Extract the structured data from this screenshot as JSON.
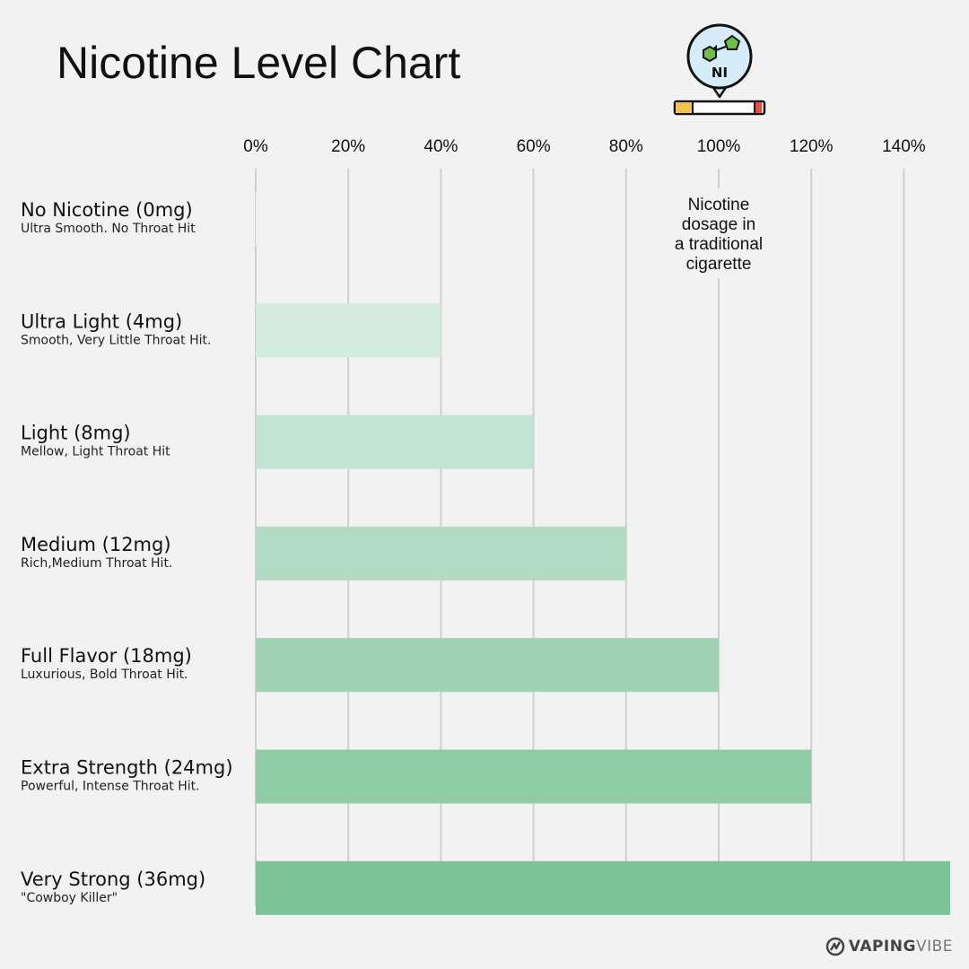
{
  "colors": {
    "background": "#f2f2f2",
    "grid": "#cfcfcf",
    "bars": [
      "#e6f5ec",
      "#d4ece0",
      "#c4e4d3",
      "#b1dcc3",
      "#9fd3b3",
      "#8ecca5",
      "#7bc497"
    ]
  },
  "chart_data": {
    "type": "bar",
    "orientation": "horizontal",
    "title": "Nicotine Level Chart",
    "xlim": [
      0,
      150
    ],
    "x_ticks": [
      0,
      20,
      40,
      60,
      80,
      100,
      120,
      140
    ],
    "x_tick_labels": [
      "0%",
      "20%",
      "40%",
      "60%",
      "80%",
      "100%",
      "120%",
      "140%"
    ],
    "grid": true,
    "categories": [
      "No Nicotine (0mg)",
      "Ultra Light (4mg)",
      "Light (8mg)",
      "Medium (12mg)",
      "Full Flavor (18mg)",
      "Extra Strength (24mg)",
      "Very Strong (36mg)"
    ],
    "descriptions": [
      "Ultra Smooth. No Throat Hit",
      "Smooth, Very Little Throat Hit.",
      "Mellow, Light Throat Hit",
      "Rich,Medium Throat Hit.",
      "Luxurious, Bold Throat Hit.",
      "Powerful, Intense Throat Hit.",
      "\"Cowboy Killer\""
    ],
    "values": [
      0,
      40,
      60,
      80,
      100,
      120,
      150
    ],
    "annotations": [
      {
        "x": 100,
        "lines": [
          "Nicotine",
          "dosage in",
          "a traditional",
          "cigarette"
        ]
      }
    ]
  },
  "icon": {
    "name": "nicotine-molecule-cigarette-icon",
    "label": "NI"
  },
  "brand": {
    "bold": "VAPING",
    "light": "VIBE"
  }
}
